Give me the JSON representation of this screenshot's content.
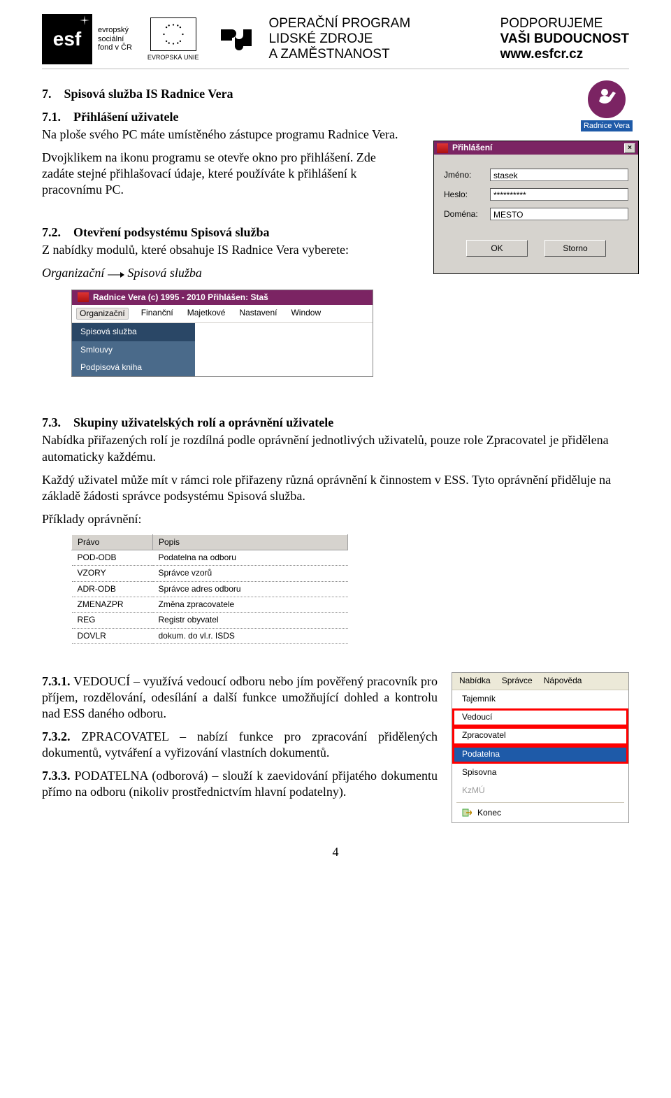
{
  "header": {
    "esf_short": "esf",
    "esf_lines": [
      "evropský",
      "sociální",
      "fond v ČR"
    ],
    "eu_caption": "EVROPSKÁ UNIE",
    "op_lines": [
      "OPERAČNÍ PROGRAM",
      "LIDSKÉ ZDROJE",
      "A ZAMĚSTNANOST"
    ],
    "podp_lines": [
      "PODPORUJEME",
      "VAŠI BUDOUCNOST"
    ],
    "podp_url": "www.esfcr.cz"
  },
  "sec7": {
    "h1_num": "7.",
    "h1": "Spisová služba IS Radnice Vera",
    "s71_num": "7.1.",
    "s71_title": "Přihlášení uživatele",
    "s71_p1": "Na ploše svého PC máte umístěného zástupce programu Radnice Vera.",
    "s71_p2": "Dvojklikem na ikonu programu se otevře okno pro přihlášení. Zde zadáte stejné přihlašovací údaje, které používáte k přihlášení k pracovnímu PC.",
    "s72_num": "7.2.",
    "s72_title": "Otevření podsystému Spisová služba",
    "s72_p1": "Z nabídky modulů, které obsahuje IS Radnice Vera vyberete:",
    "s72_path_a": "Organizační",
    "s72_path_b": "Spisová služba",
    "s73_num": "7.3.",
    "s73_title": "Skupiny uživatelských rolí a oprávnění uživatele",
    "s73_p1": "Nabídka přiřazených rolí je rozdílná podle oprávnění jednotlivých uživatelů, pouze role Zpracovatel je přidělena automaticky každému.",
    "s73_p2": "Každý uživatel může mít v rámci role přiřazeny různá oprávnění k činnostem v ESS. Tyto oprávnění přiděluje na základě žádosti správce podsystému Spisová služba.",
    "s73_ex": "Příklady oprávnění:",
    "s731_num": "7.3.1.",
    "s731_t": "VEDOUCÍ",
    "s731_p": "– využívá vedoucí odboru nebo jím pověřený pracovník pro příjem, rozdělování, odesílání a další funkce umožňující dohled a kontrolu nad ESS daného odboru.",
    "s732_num": "7.3.2.",
    "s732_t": "ZPRACOVATEL",
    "s732_p": "– nabízí funkce pro zpracování přidělených dokumentů, vytváření a vyřizování vlastních dokumentů.",
    "s733_num": "7.3.3.",
    "s733_t": "PODATELNA",
    "s733_p": "(odborová) – slouží k zaevidování přijatého dokumentu přímo na odboru (nikoliv prostřednictvím hlavní podatelny)."
  },
  "launcher": {
    "label": "Radnice Vera"
  },
  "login": {
    "title": "Přihlášení",
    "lbl_user": "Jméno:",
    "lbl_pass": "Heslo:",
    "lbl_domain": "Doména:",
    "val_user": "stasek",
    "val_pass": "**********",
    "val_domain": "MESTO",
    "btn_ok": "OK",
    "btn_cancel": "Storno"
  },
  "menubar": {
    "title": "Radnice Vera (c) 1995 - 2010    Přihlášen: Staš",
    "items": [
      "Organizační",
      "Finanční",
      "Majetkové",
      "Nastavení",
      "Window"
    ],
    "dropdown": [
      "Spisová služba",
      "Smlouvy",
      "Podpisová kniha"
    ]
  },
  "perm": {
    "cols": [
      "Právo",
      "Popis"
    ],
    "rows": [
      [
        "POD-ODB",
        "Podatelna na odboru"
      ],
      [
        "VZORY",
        "Správce vzorů"
      ],
      [
        "ADR-ODB",
        "Správce adres odboru"
      ],
      [
        "ZMENAZPR",
        "Změna zpracovatele"
      ],
      [
        "REG",
        "Registr obyvatel"
      ],
      [
        "DOVLR",
        "dokum. do vl.r. ISDS"
      ]
    ]
  },
  "roles": {
    "top": [
      "Nabídka",
      "Správce",
      "Nápověda"
    ],
    "items": [
      {
        "label": "Tajemník",
        "red": false,
        "sel": false,
        "disabled": false
      },
      {
        "label": "Vedoucí",
        "red": true,
        "sel": false,
        "disabled": false
      },
      {
        "label": "Zpracovatel",
        "red": true,
        "sel": false,
        "disabled": false
      },
      {
        "label": "Podatelna",
        "red": true,
        "sel": true,
        "disabled": false
      },
      {
        "label": "Spisovna",
        "red": false,
        "sel": false,
        "disabled": false
      },
      {
        "label": "KzMÚ",
        "red": false,
        "sel": false,
        "disabled": true
      }
    ],
    "exit": "Konec"
  },
  "page_number": "4"
}
